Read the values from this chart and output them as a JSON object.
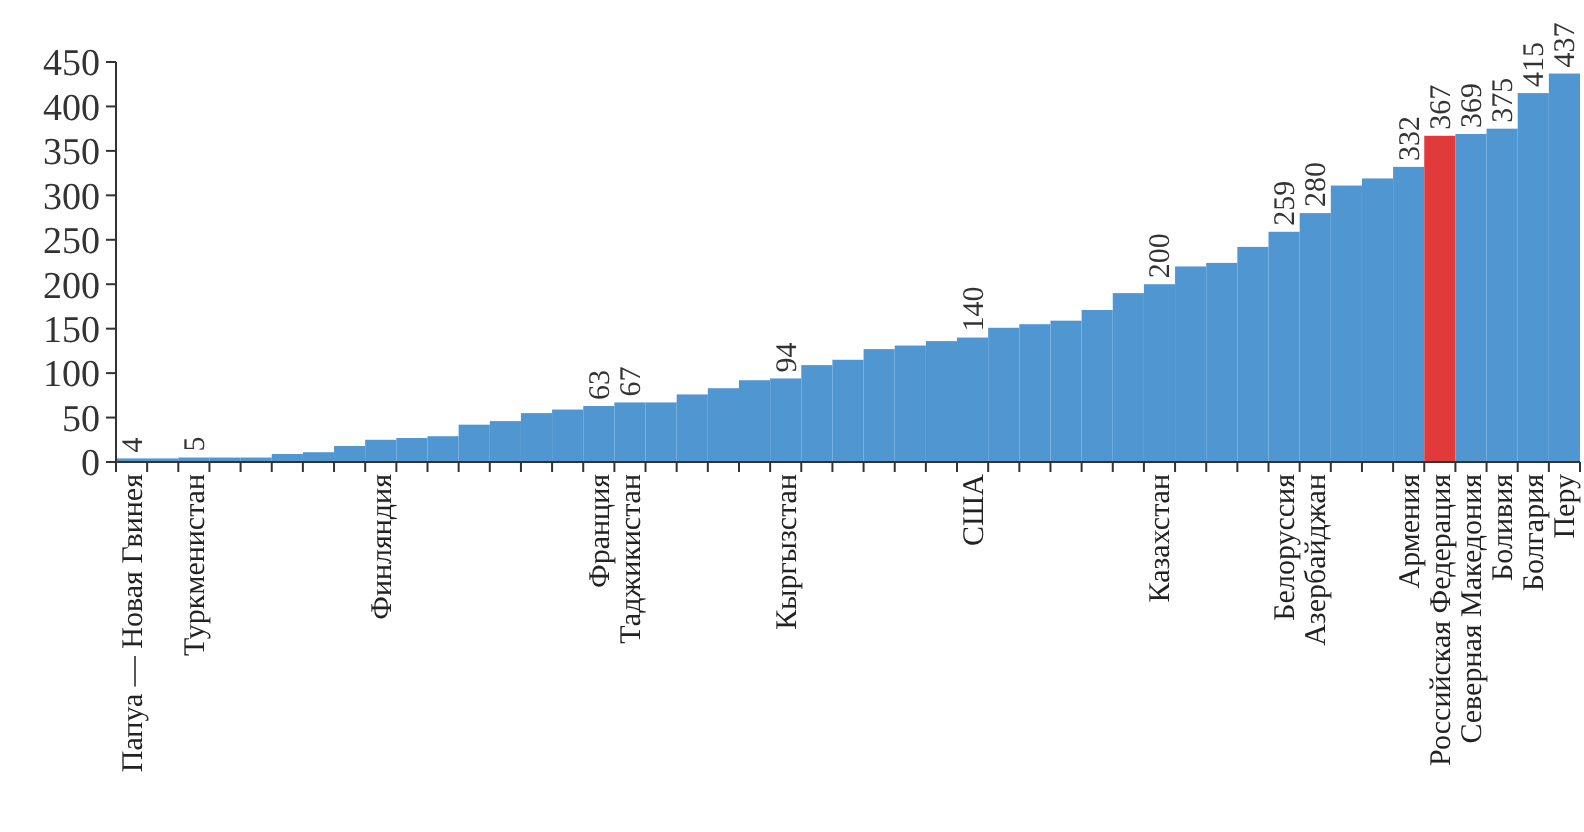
{
  "chart_data": {
    "type": "bar",
    "categories": [
      "Папуа — Новая Гвинея",
      null,
      "Туркменистан",
      null,
      null,
      null,
      null,
      null,
      "Финляндия",
      null,
      null,
      null,
      null,
      null,
      null,
      "Франция",
      "Таджикистан",
      null,
      null,
      null,
      null,
      "Кыргызстан",
      null,
      null,
      null,
      null,
      null,
      "США",
      null,
      null,
      null,
      null,
      null,
      "Казахстан",
      null,
      null,
      null,
      "Белоруссия",
      "Азербайджан",
      null,
      null,
      "Армения",
      "Российская Федерация",
      "Северная Македония",
      "Боливия",
      "Болгария",
      "Перу"
    ],
    "values": [
      4,
      4,
      5,
      5,
      5,
      9,
      11,
      18,
      25,
      27,
      29,
      42,
      46,
      55,
      59,
      63,
      67,
      67,
      76,
      83,
      92,
      94,
      109,
      115,
      127,
      131,
      136,
      140,
      151,
      155,
      159,
      171,
      190,
      200,
      220,
      224,
      242,
      259,
      280,
      311,
      319,
      332,
      367,
      369,
      375,
      415,
      437
    ],
    "colors": [
      "#5096d0",
      "#5096d0",
      "#5096d0",
      "#5096d0",
      "#5096d0",
      "#5096d0",
      "#5096d0",
      "#5096d0",
      "#5096d0",
      "#5096d0",
      "#5096d0",
      "#5096d0",
      "#5096d0",
      "#5096d0",
      "#5096d0",
      "#5096d0",
      "#5096d0",
      "#5096d0",
      "#5096d0",
      "#5096d0",
      "#5096d0",
      "#5096d0",
      "#5096d0",
      "#5096d0",
      "#5096d0",
      "#5096d0",
      "#5096d0",
      "#5096d0",
      "#5096d0",
      "#5096d0",
      "#5096d0",
      "#5096d0",
      "#5096d0",
      "#5096d0",
      "#5096d0",
      "#5096d0",
      "#5096d0",
      "#5096d0",
      "#5096d0",
      "#5096d0",
      "#5096d0",
      "#5096d0",
      "#e03a3a",
      "#5096d0",
      "#5096d0",
      "#5096d0",
      "#5096d0"
    ],
    "value_labels": [
      "4",
      null,
      "5",
      null,
      null,
      null,
      null,
      null,
      null,
      null,
      null,
      null,
      null,
      null,
      null,
      "63",
      "67",
      null,
      null,
      null,
      null,
      "94",
      null,
      null,
      null,
      null,
      null,
      "140",
      null,
      null,
      null,
      null,
      null,
      "200",
      null,
      null,
      null,
      "259",
      "280",
      null,
      null,
      "332",
      "367",
      "369",
      "375",
      "415",
      "437"
    ],
    "ylim": [
      0,
      450
    ],
    "yticks": [
      0,
      50,
      100,
      150,
      200,
      250,
      300,
      350,
      400,
      450
    ],
    "grid": false
  }
}
